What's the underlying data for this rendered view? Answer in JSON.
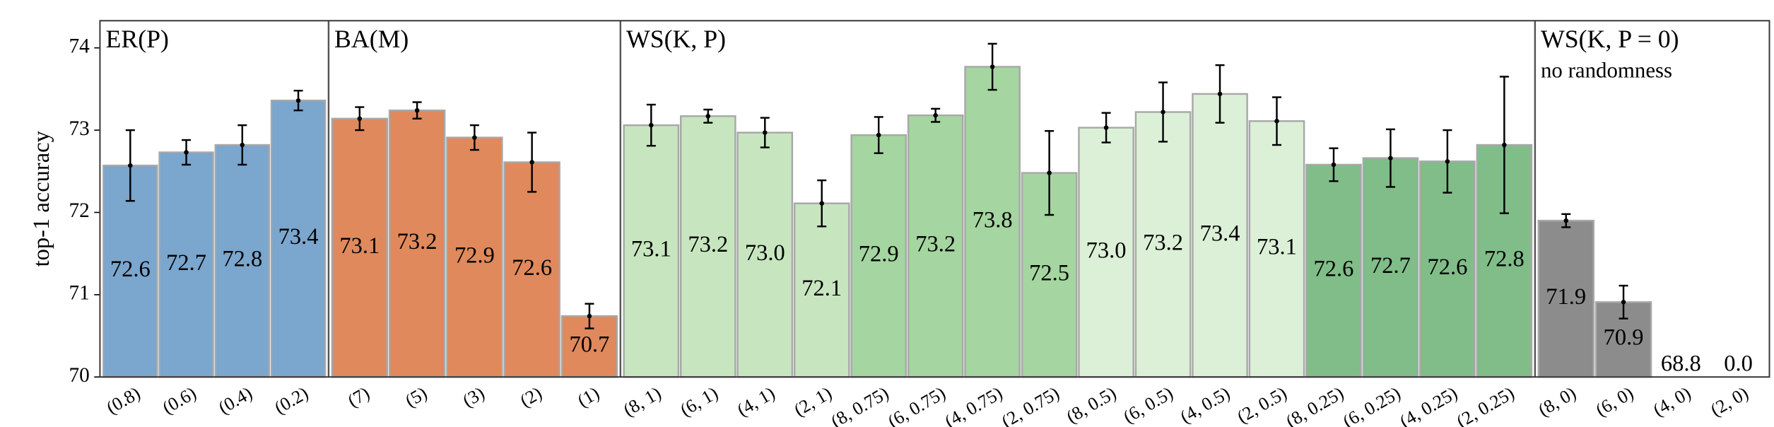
{
  "chart_data": {
    "type": "bar",
    "ylabel": "top-1 accuracy",
    "ylim": [
      70,
      74.33
    ],
    "yticks": [
      70,
      71,
      72,
      73,
      74
    ],
    "groups": [
      {
        "title": "ER(P)",
        "categories": [
          "(0.8)",
          "(0.6)",
          "(0.4)",
          "(0.2)"
        ],
        "values": [
          72.57,
          72.73,
          72.82,
          73.36
        ],
        "value_labels": [
          "72.6",
          "72.7",
          "72.8",
          "73.4"
        ],
        "errors": [
          0.43,
          0.15,
          0.24,
          0.12
        ],
        "colors": [
          "#7ba6cd",
          "#7ba6cd",
          "#7ba6cd",
          "#7ba6cd"
        ]
      },
      {
        "title": "BA(M)",
        "categories": [
          "(7)",
          "(5)",
          "(3)",
          "(2)",
          "(1)"
        ],
        "values": [
          73.14,
          73.24,
          72.91,
          72.61,
          70.74
        ],
        "value_labels": [
          "73.1",
          "73.2",
          "72.9",
          "72.6",
          "70.7"
        ],
        "errors": [
          0.14,
          0.1,
          0.15,
          0.36,
          0.15
        ],
        "colors": [
          "#e0895c",
          "#e0895c",
          "#e0895c",
          "#e0895c",
          "#e0895c"
        ]
      },
      {
        "title": "WS(K, P)",
        "categories": [
          "(8, 1)",
          "(6, 1)",
          "(4, 1)",
          "(2, 1)",
          "(8, 0.75)",
          "(6, 0.75)",
          "(4, 0.75)",
          "(2, 0.75)",
          "(8, 0.5)",
          "(6, 0.5)",
          "(4, 0.5)",
          "(2, 0.5)",
          "(8, 0.25)",
          "(6, 0.25)",
          "(4, 0.25)",
          "(2, 0.25)"
        ],
        "values": [
          73.06,
          73.17,
          72.97,
          72.11,
          72.94,
          73.18,
          73.77,
          72.48,
          73.03,
          73.22,
          73.44,
          73.11,
          72.58,
          72.66,
          72.62,
          72.82
        ],
        "value_labels": [
          "73.1",
          "73.2",
          "73.0",
          "72.1",
          "72.9",
          "73.2",
          "73.8",
          "72.5",
          "73.0",
          "73.2",
          "73.4",
          "73.1",
          "72.6",
          "72.7",
          "72.6",
          "72.8"
        ],
        "errors": [
          0.25,
          0.08,
          0.18,
          0.28,
          0.22,
          0.08,
          0.28,
          0.51,
          0.18,
          0.36,
          0.35,
          0.29,
          0.2,
          0.35,
          0.38,
          0.83
        ],
        "colors": [
          "#c7e6c0",
          "#c7e6c0",
          "#c7e6c0",
          "#c7e6c0",
          "#a5d5a0",
          "#a5d5a0",
          "#a5d5a0",
          "#a5d5a0",
          "#dcf0d7",
          "#dcf0d7",
          "#dcf0d7",
          "#dcf0d7",
          "#80bd88",
          "#80bd88",
          "#80bd88",
          "#80bd88"
        ]
      },
      {
        "title": "WS(K, P = 0)",
        "subtitle": "no randomness",
        "categories": [
          "(8, 0)",
          "(6, 0)",
          "(4, 0)",
          "(2, 0)"
        ],
        "values": [
          71.9,
          70.91,
          68.8,
          0
        ],
        "value_labels": [
          "71.9",
          "70.9",
          "68.8",
          "0.0"
        ],
        "errors": [
          0.08,
          0.2,
          null,
          null
        ],
        "colors": [
          "#8c8c8c",
          "#8c8c8c",
          "#8c8c8c",
          "#8c8c8c"
        ]
      }
    ]
  }
}
